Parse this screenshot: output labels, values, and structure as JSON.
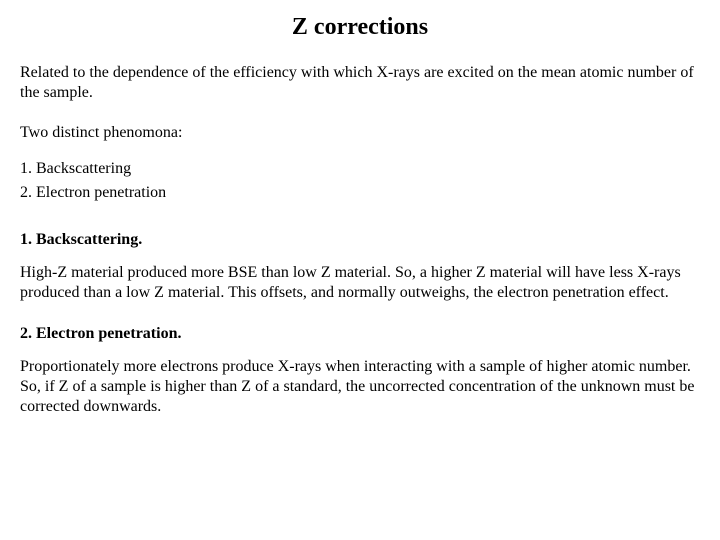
{
  "title": "Z corrections",
  "intro": "Related to the dependence of the efficiency with which X-rays are excited on the mean atomic number of the sample.",
  "phenomena_intro": "Two distinct phenomona:",
  "list": {
    "item1": "1.   Backscattering",
    "item2": "2.   Electron penetration"
  },
  "section1": {
    "heading": "1.  Backscattering.",
    "body": "High-Z material produced more BSE than low Z material.  So, a higher Z material will have less X-rays produced than a low Z material.  This offsets, and normally outweighs, the electron penetration effect."
  },
  "section2": {
    "heading": "2.  Electron penetration.",
    "body": " Proportionately more electrons produce X-rays when interacting with a sample of higher atomic number.  So, if Z of a sample is higher than Z of a standard, the uncorrected concentration of the unknown must be corrected downwards."
  }
}
